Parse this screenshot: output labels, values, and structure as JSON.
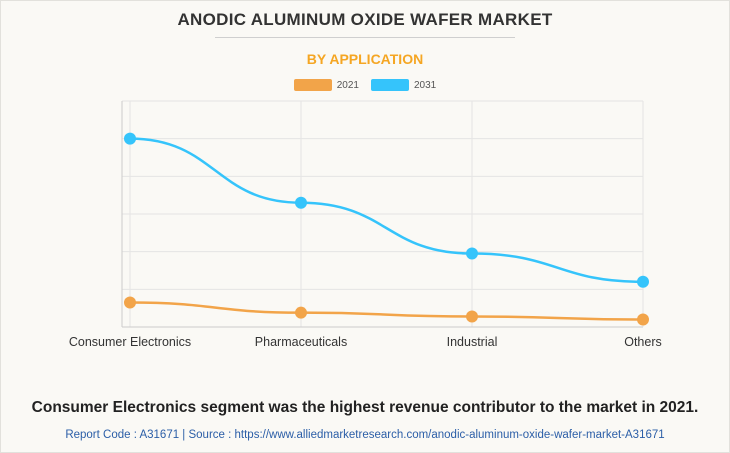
{
  "title": "ANODIC ALUMINUM OXIDE WAFER MARKET",
  "subtitle": "BY APPLICATION",
  "colors": {
    "subtitle": "#f5a623",
    "series_2021": "#f2a449",
    "series_2031": "#35c4fb",
    "grid": "#e4e4e4",
    "axis": "#cccccc"
  },
  "chart_data": {
    "type": "line",
    "categories": [
      "Consumer Electronics",
      "Pharmaceuticals",
      "Industrial",
      "Others"
    ],
    "series": [
      {
        "name": "2021",
        "values": [
          6.5,
          3.8,
          2.8,
          2.0
        ]
      },
      {
        "name": "2031",
        "values": [
          50,
          33,
          19.5,
          12
        ]
      }
    ],
    "ylim": [
      0,
      60
    ],
    "y_ticks": [
      0,
      10,
      20,
      30,
      40,
      50,
      60
    ],
    "grid": true,
    "legend_position": "top-center",
    "xlabel": "",
    "ylabel": ""
  },
  "headline": "Consumer Electronics segment was the highest revenue contributor to the market in 2021.",
  "source_line": "Report Code : A31671  |  Source : https://www.alliedmarketresearch.com/anodic-aluminum-oxide-wafer-market-A31671"
}
